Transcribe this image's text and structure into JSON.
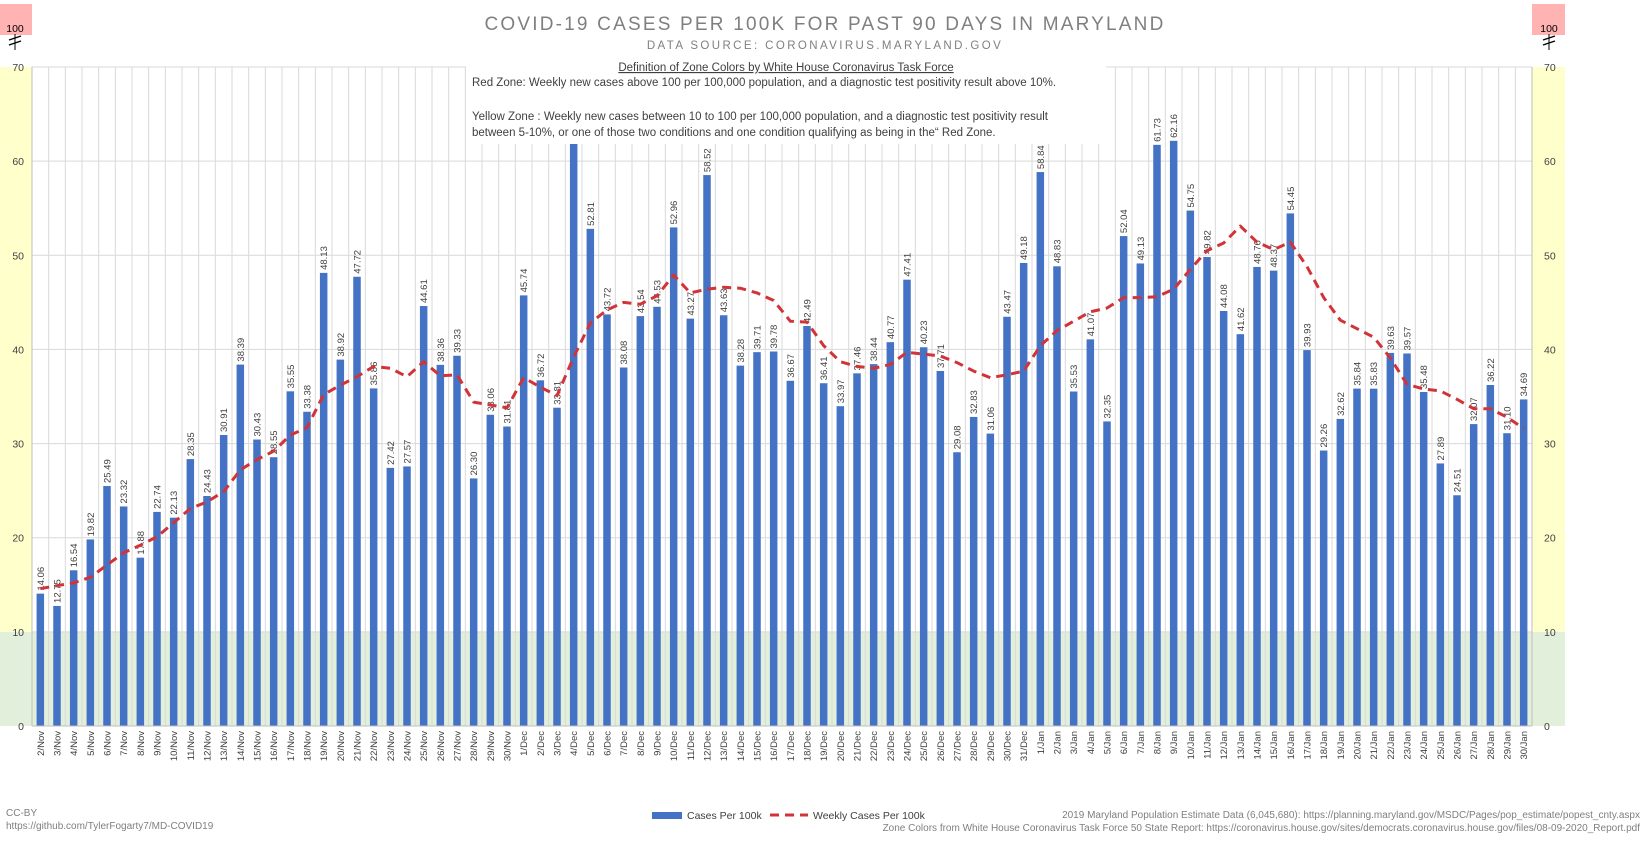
{
  "chart_data": {
    "type": "bar",
    "title": "COVID-19 CASES PER 100K FOR PAST 90 DAYS IN MARYLAND",
    "subtitle": "DATA SOURCE: CORONAVIRUS.MARYLAND.GOV",
    "ylim": [
      0,
      70
    ],
    "yticks": [
      0,
      10,
      20,
      30,
      40,
      50,
      60,
      70
    ],
    "axis_break_label": "100",
    "grid": true,
    "legend_position": "bottom",
    "zones": [
      {
        "name": "green",
        "from": 0,
        "to": 10,
        "color": "#e2efda"
      },
      {
        "name": "yellow",
        "from": 10,
        "to": 70,
        "color": "#ffffcc"
      },
      {
        "name": "red",
        "from": 70,
        "to": 100,
        "color": "#ffb3b3"
      }
    ],
    "categories": [
      "2/Nov",
      "3/Nov",
      "4/Nov",
      "5/Nov",
      "6/Nov",
      "7/Nov",
      "8/Nov",
      "9/Nov",
      "10/Nov",
      "11/Nov",
      "12/Nov",
      "13/Nov",
      "14/Nov",
      "15/Nov",
      "16/Nov",
      "17/Nov",
      "18/Nov",
      "19/Nov",
      "20/Nov",
      "21/Nov",
      "22/Nov",
      "23/Nov",
      "24/Nov",
      "25/Nov",
      "26/Nov",
      "27/Nov",
      "28/Nov",
      "29/Nov",
      "30/Nov",
      "1/Dec",
      "2/Dec",
      "3/Dec",
      "4/Dec",
      "5/Dec",
      "6/Dec",
      "7/Dec",
      "8/Dec",
      "9/Dec",
      "10/Dec",
      "11/Dec",
      "12/Dec",
      "13/Dec",
      "14/Dec",
      "15/Dec",
      "16/Dec",
      "17/Dec",
      "18/Dec",
      "19/Dec",
      "20/Dec",
      "21/Dec",
      "22/Dec",
      "23/Dec",
      "24/Dec",
      "25/Dec",
      "26/Dec",
      "27/Dec",
      "28/Dec",
      "29/Dec",
      "30/Dec",
      "31/Dec",
      "1/Jan",
      "2/Jan",
      "3/Jan",
      "4/Jan",
      "5/Jan",
      "6/Jan",
      "7/Jan",
      "8/Jan",
      "9/Jan",
      "10/Jan",
      "11/Jan",
      "12/Jan",
      "13/Jan",
      "14/Jan",
      "15/Jan",
      "16/Jan",
      "17/Jan",
      "18/Jan",
      "19/Jan",
      "20/Jan",
      "21/Jan",
      "22/Jan",
      "23/Jan",
      "24/Jan",
      "25/Jan",
      "26/Jan",
      "27/Jan",
      "28/Jan",
      "29/Jan",
      "30/Jan"
    ],
    "series": [
      {
        "name": "Cases Per 100k",
        "type": "bar",
        "color": "#4472c4",
        "values": [
          14.06,
          12.75,
          16.54,
          19.82,
          25.49,
          23.32,
          17.88,
          22.74,
          22.13,
          28.35,
          24.43,
          30.91,
          38.39,
          30.43,
          28.55,
          35.55,
          33.38,
          48.13,
          38.92,
          47.72,
          35.86,
          27.42,
          27.57,
          44.61,
          38.36,
          39.33,
          26.3,
          33.06,
          31.81,
          45.74,
          36.72,
          33.81,
          64.72,
          52.81,
          43.72,
          38.08,
          43.54,
          44.53,
          52.96,
          43.27,
          58.52,
          43.63,
          38.28,
          39.71,
          39.78,
          36.67,
          42.49,
          36.41,
          33.97,
          37.46,
          38.44,
          40.77,
          47.41,
          40.23,
          37.71,
          29.08,
          32.83,
          31.06,
          43.47,
          49.18,
          58.84,
          48.83,
          35.53,
          41.07,
          32.35,
          52.04,
          49.13,
          61.73,
          62.16,
          54.75,
          49.82,
          44.08,
          41.62,
          48.76,
          48.37,
          54.45,
          39.93,
          29.26,
          32.62,
          35.84,
          35.83,
          39.63,
          39.57,
          35.48,
          27.89,
          24.51,
          32.07,
          36.22,
          31.1,
          34.69
        ]
      },
      {
        "name": "Weekly Cases Per 100k",
        "type": "line",
        "style": "dashed",
        "color": "#d13438",
        "values": [
          14.6,
          14.9,
          15.2,
          15.8,
          17.1,
          18.4,
          19.2,
          20.1,
          21.6,
          23.1,
          23.8,
          24.9,
          27.2,
          28.3,
          29.2,
          30.9,
          31.7,
          35.2,
          36.2,
          37.1,
          38.2,
          38.0,
          37.1,
          38.7,
          37.2,
          37.3,
          34.4,
          34.1,
          33.8,
          37.0,
          36.0,
          35.1,
          39.2,
          42.8,
          44.2,
          45.0,
          44.8,
          45.7,
          47.9,
          46.0,
          46.4,
          46.6,
          46.5,
          46.0,
          45.2,
          43.0,
          42.9,
          40.4,
          38.7,
          38.2,
          38.0,
          38.4,
          39.7,
          39.5,
          39.3,
          38.6,
          37.7,
          37.0,
          37.3,
          37.7,
          40.4,
          42.0,
          43.0,
          44.0,
          44.4,
          45.5,
          45.5,
          45.6,
          46.4,
          48.5,
          50.5,
          51.3,
          53.1,
          51.4,
          50.6,
          51.4,
          48.8,
          45.5,
          43.1,
          42.2,
          41.3,
          39.1,
          36.3,
          35.8,
          35.6,
          34.7,
          33.7,
          33.7,
          32.8,
          31.6
        ]
      }
    ]
  },
  "zone_box": {
    "heading": "Definition of Zone Colors by White House Coronavirus Task Force",
    "red_line": "Red Zone: Weekly new cases above 100 per 100,000 population, and a diagnostic test positivity result above 10%.",
    "yellow_line1": "Yellow Zone : Weekly new cases between 10 to 100 per 100,000 population, and a diagnostic test positivity result",
    "yellow_line2": "between 5-10%, or one of those two conditions and one condition qualifying as being in the“ Red Zone."
  },
  "footer": {
    "license": "CC-BY",
    "repo": "https://github.com/TylerFogarty7/MD-COVID19",
    "source_pop": "2019 Maryland Population Estimate Data (6,045,680): https://planning.maryland.gov/MSDC/Pages/pop_estimate/popest_cnty.aspx",
    "source_zone": "Zone Colors from White House Coronavirus Task Force 50 State Report: https://coronavirus.house.gov/sites/democrats.coronavirus.house.gov/files/08-09-2020_Report.pdf"
  }
}
